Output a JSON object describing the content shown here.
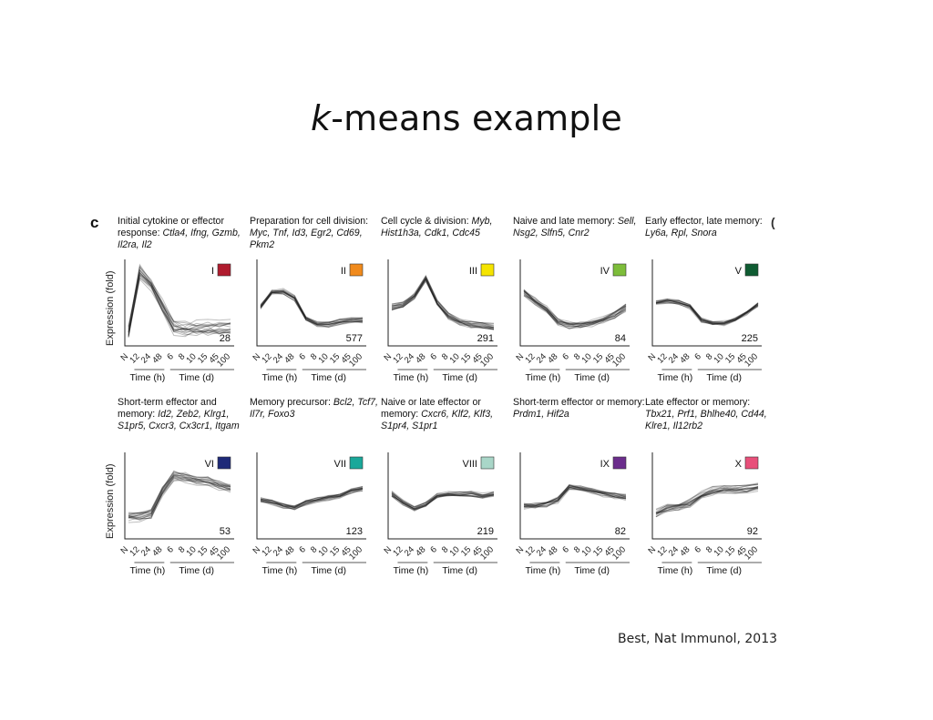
{
  "slide": {
    "title_italic": "k",
    "title_rest": "-means example",
    "citation": "Best, Nat Immunol, 2013",
    "panel_letter": "c",
    "stray_mark": "("
  },
  "chart_data": {
    "type": "line",
    "ylabel": "Expression (fold)",
    "x_tick_labels": [
      "N",
      "12",
      "24",
      "48",
      "6",
      "8",
      "10",
      "15",
      "45",
      "100"
    ],
    "x_group_labels": [
      "Time (h)",
      "Time (d)"
    ],
    "colors": {
      "line": "#1a1a1a",
      "axis": "#222"
    },
    "clusters": [
      {
        "roman": "I",
        "count": "28",
        "color": "#b01c2e",
        "desc_plain": "Initial cytokine or effector response: ",
        "desc_genes": "Ctla4, Ifng, Gzmb, Il2ra, Il2",
        "profile": [
          0.15,
          0.85,
          0.72,
          0.45,
          0.22,
          0.2,
          0.2,
          0.21,
          0.2,
          0.21
        ],
        "spread": 0.12
      },
      {
        "roman": "II",
        "count": "577",
        "color": "#f08a1c",
        "desc_plain": "Preparation for cell division: ",
        "desc_genes": "Myc, Tnf, Id3, Egr2, Cd69, Pkm2",
        "profile": [
          0.45,
          0.62,
          0.63,
          0.55,
          0.32,
          0.25,
          0.25,
          0.28,
          0.3,
          0.3
        ],
        "spread": 0.04
      },
      {
        "roman": "III",
        "count": "291",
        "color": "#f5e400",
        "desc_plain": "Cell cycle & division: ",
        "desc_genes": "Myb, Hist1h3a, Cdk1, Cdc45",
        "profile": [
          0.45,
          0.48,
          0.58,
          0.78,
          0.5,
          0.35,
          0.28,
          0.25,
          0.24,
          0.22
        ],
        "spread": 0.05
      },
      {
        "roman": "IV",
        "count": "84",
        "color": "#7dbd3a",
        "desc_plain": "Naive and late memory: ",
        "desc_genes": "Sell, Nsg2, Slfn5, Cnr2",
        "profile": [
          0.62,
          0.52,
          0.42,
          0.28,
          0.24,
          0.24,
          0.26,
          0.3,
          0.36,
          0.45
        ],
        "spread": 0.06
      },
      {
        "roman": "V",
        "count": "225",
        "color": "#0f5c32",
        "desc_plain": "Early effector, late memory: ",
        "desc_genes": "Ly6a, Rpl, Snora",
        "profile": [
          0.5,
          0.52,
          0.5,
          0.45,
          0.3,
          0.26,
          0.26,
          0.3,
          0.38,
          0.48
        ],
        "spread": 0.04
      },
      {
        "roman": "VI",
        "count": "53",
        "color": "#1e2a78",
        "desc_plain": "Short-term effector and memory: ",
        "desc_genes": "Id2, Zeb2, Klrg1, S1pr5, Cxcr3, Cx3cr1, Itgam",
        "profile": [
          0.25,
          0.25,
          0.28,
          0.55,
          0.72,
          0.7,
          0.68,
          0.66,
          0.62,
          0.58
        ],
        "spread": 0.08
      },
      {
        "roman": "VII",
        "count": "123",
        "color": "#1aa89a",
        "desc_plain": "Memory precursor: ",
        "desc_genes": "Bcl2, Tcf7, Il7r, Foxo3",
        "profile": [
          0.45,
          0.42,
          0.38,
          0.36,
          0.42,
          0.45,
          0.48,
          0.5,
          0.55,
          0.58
        ],
        "spread": 0.04
      },
      {
        "roman": "VIII",
        "count": "219",
        "color": "#a9d6c8",
        "desc_plain": "Naive or late effector or memory: ",
        "desc_genes": "Cxcr6, Klf2, Klf3, S1pr4, S1pr1",
        "profile": [
          0.52,
          0.42,
          0.35,
          0.4,
          0.5,
          0.52,
          0.52,
          0.52,
          0.5,
          0.52
        ],
        "spread": 0.04
      },
      {
        "roman": "IX",
        "count": "82",
        "color": "#6b2d8c",
        "desc_plain": "Short-term effector or memory: ",
        "desc_genes": "Prdm1, Hif2a",
        "profile": [
          0.38,
          0.38,
          0.4,
          0.45,
          0.6,
          0.58,
          0.55,
          0.52,
          0.5,
          0.48
        ],
        "spread": 0.05
      },
      {
        "roman": "X",
        "count": "92",
        "color": "#e8507a",
        "desc_plain": "Late effector or memory: ",
        "desc_genes": "Tbx21, Prf1, Bhlhe40, Cd44, Klre1, Il12rb2",
        "profile": [
          0.3,
          0.36,
          0.38,
          0.42,
          0.5,
          0.55,
          0.58,
          0.58,
          0.58,
          0.6
        ],
        "spread": 0.07
      }
    ]
  }
}
